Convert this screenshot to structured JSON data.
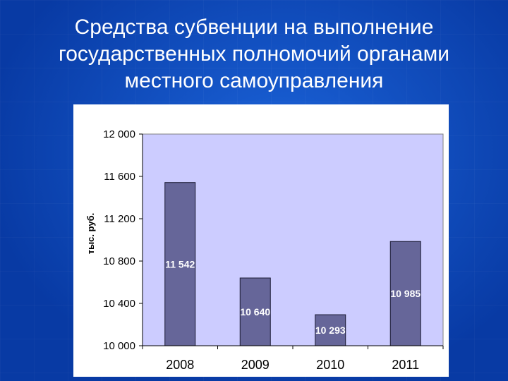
{
  "slide": {
    "title": "Средства субвенции на выполнение государственных полномочий органами местного самоуправления"
  },
  "colors": {
    "plot_background": "#ccccff",
    "bar_fill": "#666699",
    "bar_stroke": "#1a1a33",
    "text": "#000000"
  },
  "chart_data": {
    "type": "bar",
    "categories": [
      "2008",
      "2009",
      "2010",
      "2011"
    ],
    "values": [
      11542,
      10640,
      10293,
      10985
    ],
    "data_labels": [
      "11 542",
      "10 640",
      "10 293",
      "10 985"
    ],
    "title": "",
    "xlabel": "",
    "ylabel": "тыс. руб.",
    "ylim": [
      10000,
      12000
    ],
    "yticks": [
      10000,
      10400,
      10800,
      11200,
      11600,
      12000
    ],
    "ytick_labels": [
      "10 000",
      "10 400",
      "10 800",
      "11 200",
      "11 600",
      "12 000"
    ],
    "grid": false,
    "legend": "none"
  }
}
